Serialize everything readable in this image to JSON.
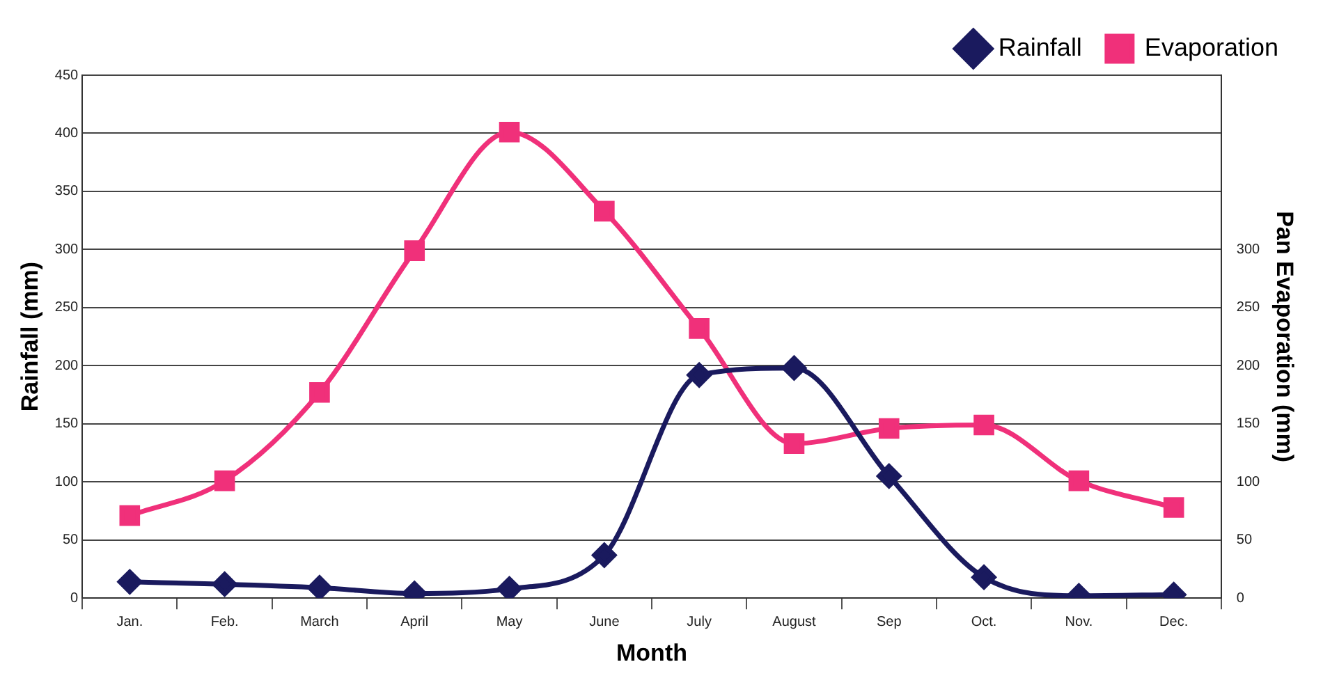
{
  "chart_data": {
    "type": "line",
    "xlabel": "Month",
    "ylabel": "Rainfall (mm)",
    "y2label": "Pan Evaporation (mm)",
    "categories": [
      "Jan.",
      "Feb.",
      "March",
      "April",
      "May",
      "June",
      "July",
      "August",
      "Sep",
      "Oct.",
      "Nov.",
      "Dec."
    ],
    "series": [
      {
        "name": "Rainfall",
        "color": "#1a1a5e",
        "marker": "diamond",
        "values": [
          14,
          12,
          9,
          4,
          8,
          37,
          192,
          198,
          105,
          18,
          2,
          3
        ]
      },
      {
        "name": "Evaporation",
        "color": "#f0307a",
        "marker": "square",
        "axis": "y2",
        "values": [
          71,
          101,
          177,
          299,
          401,
          333,
          232,
          133,
          146,
          149,
          101,
          78
        ]
      }
    ],
    "ylim": [
      0,
      450
    ],
    "yticks": [
      0,
      50,
      100,
      150,
      200,
      250,
      300,
      350,
      400,
      450
    ],
    "y2lim": [
      0,
      450
    ],
    "y2ticks": [
      0,
      50,
      100,
      150,
      200,
      250,
      300
    ],
    "grid": "y",
    "legend": "top right"
  }
}
